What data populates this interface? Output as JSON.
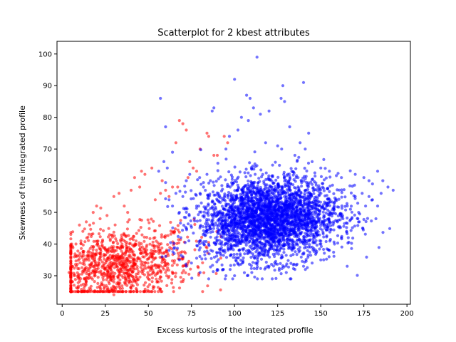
{
  "chart_data": {
    "type": "scatter",
    "title": "Scatterplot for 2 kbest attributes",
    "xlabel": "Excess kurtosis of the integrated profile",
    "ylabel": "Skewness of the integrated profile",
    "xlim": [
      -3,
      202
    ],
    "ylim": [
      21,
      104
    ],
    "xticks": [
      0,
      25,
      50,
      75,
      100,
      125,
      150,
      175,
      200
    ],
    "yticks": [
      30,
      40,
      50,
      60,
      70,
      80,
      90,
      100
    ],
    "grid": false,
    "marker_alpha": 0.55,
    "series": [
      {
        "color": "#ff0000",
        "cluster": {
          "center": [
            32,
            33
          ],
          "spread": [
            22,
            6
          ],
          "count": 1100,
          "correlation": 0.25
        },
        "points": [
          [
            46,
            63
          ],
          [
            48,
            62
          ],
          [
            42,
            61
          ],
          [
            52,
            64
          ],
          [
            68,
            79
          ],
          [
            70,
            78
          ],
          [
            72,
            76
          ],
          [
            66,
            72
          ],
          [
            58,
            60
          ],
          [
            60,
            57
          ],
          [
            64,
            58
          ],
          [
            57,
            56
          ],
          [
            45,
            58
          ],
          [
            40,
            57
          ],
          [
            33,
            56
          ],
          [
            30,
            55
          ],
          [
            20,
            52
          ],
          [
            18,
            50
          ],
          [
            14,
            47
          ],
          [
            10,
            46
          ],
          [
            12,
            44
          ],
          [
            16,
            46
          ],
          [
            22,
            48
          ],
          [
            26,
            49
          ],
          [
            36,
            52
          ],
          [
            38,
            50
          ],
          [
            54,
            54
          ],
          [
            62,
            55
          ],
          [
            78,
            63
          ],
          [
            80,
            70
          ],
          [
            85,
            74
          ],
          [
            84,
            75
          ],
          [
            74,
            66
          ],
          [
            76,
            64
          ],
          [
            88,
            68
          ],
          [
            94,
            74
          ],
          [
            90,
            68
          ],
          [
            73,
            61
          ],
          [
            67,
            58
          ],
          [
            96,
            72
          ],
          [
            5,
            28
          ],
          [
            7,
            30
          ],
          [
            6,
            33
          ],
          [
            9,
            26
          ],
          [
            11,
            27
          ],
          [
            24,
            25
          ],
          [
            30,
            24
          ],
          [
            40,
            26
          ],
          [
            35,
            26
          ],
          [
            55,
            28
          ],
          [
            50,
            29
          ],
          [
            60,
            31
          ],
          [
            70,
            33
          ],
          [
            65,
            34
          ],
          [
            8,
            40
          ],
          [
            4,
            31
          ]
        ]
      },
      {
        "color": "#0000ff",
        "cluster": {
          "center": [
            120,
            48
          ],
          "spread": [
            20,
            6.5
          ],
          "count": 3200,
          "correlation": 0.1
        },
        "points": [
          [
            113,
            99
          ],
          [
            100,
            92
          ],
          [
            107,
            87
          ],
          [
            109,
            86
          ],
          [
            128,
            90
          ],
          [
            140,
            91
          ],
          [
            127,
            86
          ],
          [
            129,
            85
          ],
          [
            111,
            83
          ],
          [
            88,
            83
          ],
          [
            87,
            82
          ],
          [
            120,
            82
          ],
          [
            115,
            81
          ],
          [
            57,
            86
          ],
          [
            60,
            77
          ],
          [
            64,
            69
          ],
          [
            56,
            63
          ],
          [
            59,
            66
          ],
          [
            61,
            64
          ],
          [
            108,
            79
          ],
          [
            104,
            80
          ],
          [
            132,
            77
          ],
          [
            143,
            75
          ],
          [
            118,
            72
          ],
          [
            125,
            71
          ],
          [
            138,
            72
          ],
          [
            141,
            70
          ],
          [
            97,
            74
          ],
          [
            95,
            70
          ],
          [
            102,
            76
          ],
          [
            135,
            68
          ],
          [
            145,
            66
          ],
          [
            150,
            64
          ],
          [
            155,
            63
          ],
          [
            162,
            61
          ],
          [
            170,
            62
          ],
          [
            175,
            61
          ],
          [
            178,
            60
          ],
          [
            180,
            59
          ],
          [
            183,
            63
          ],
          [
            186,
            60
          ],
          [
            189,
            58
          ],
          [
            192,
            57
          ],
          [
            185,
            56
          ],
          [
            180,
            54
          ],
          [
            176,
            52
          ],
          [
            172,
            50
          ],
          [
            168,
            48
          ],
          [
            165,
            44
          ],
          [
            162,
            42
          ],
          [
            158,
            40
          ],
          [
            155,
            38
          ],
          [
            150,
            35
          ],
          [
            145,
            34
          ],
          [
            140,
            33
          ],
          [
            135,
            32
          ],
          [
            130,
            31
          ],
          [
            120,
            33
          ],
          [
            110,
            31
          ],
          [
            100,
            30
          ],
          [
            95,
            30
          ],
          [
            90,
            32
          ],
          [
            85,
            29
          ],
          [
            80,
            31
          ],
          [
            75,
            34
          ],
          [
            72,
            33
          ],
          [
            70,
            36
          ],
          [
            68,
            35
          ],
          [
            65,
            37
          ],
          [
            62,
            38
          ],
          [
            58,
            36
          ],
          [
            64,
            52
          ],
          [
            62,
            54
          ],
          [
            66,
            56
          ],
          [
            68,
            50
          ],
          [
            70,
            55
          ],
          [
            72,
            60
          ],
          [
            74,
            62
          ],
          [
            78,
            52
          ],
          [
            80,
            56
          ],
          [
            82,
            58
          ],
          [
            84,
            62
          ],
          [
            86,
            60
          ],
          [
            170,
            55
          ],
          [
            174,
            56
          ],
          [
            178,
            55
          ],
          [
            182,
            48
          ],
          [
            183,
            52
          ]
        ]
      }
    ]
  }
}
